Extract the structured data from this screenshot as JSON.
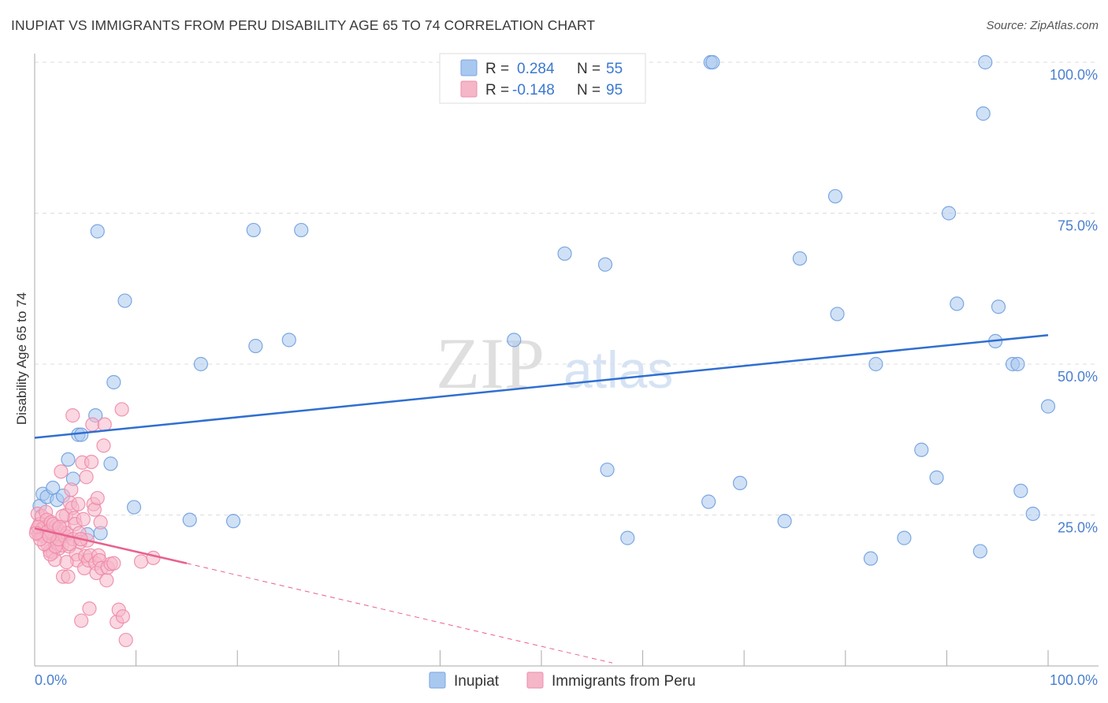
{
  "header": {
    "title": "INUPIAT VS IMMIGRANTS FROM PERU DISABILITY AGE 65 TO 74 CORRELATION CHART",
    "source": "Source: ZipAtlas.com"
  },
  "watermark": {
    "zip": "ZIP",
    "atlas": "atlas"
  },
  "legend": {
    "rows": [
      {
        "r_label": "R =",
        "r_value": "0.284",
        "n_label": "N =",
        "n_value": "55",
        "color": "#a9c8ef"
      },
      {
        "r_label": "R =",
        "r_value": "-0.148",
        "n_label": "N =",
        "n_value": "95",
        "color": "#f5b6c8"
      }
    ]
  },
  "chart_data": {
    "type": "scatter",
    "title": "INUPIAT VS IMMIGRANTS FROM PERU DISABILITY AGE 65 TO 74 CORRELATION CHART",
    "xlabel": "",
    "ylabel": "Disability Age 65 to 74",
    "xlim": [
      0,
      100
    ],
    "ylim": [
      0,
      102
    ],
    "x_tick_labels": [
      "0.0%",
      "100.0%"
    ],
    "y_tick_labels": [
      "25.0%",
      "50.0%",
      "75.0%",
      "100.0%"
    ],
    "y_tick_values": [
      25,
      50,
      75,
      100
    ],
    "grid": true,
    "legend_position": "top-center",
    "series": [
      {
        "name": "Inupiat",
        "color": "#6f9fe0",
        "fill": "#a9c8ef",
        "trend": {
          "x": [
            0,
            100
          ],
          "y": [
            37.8,
            54.8
          ],
          "color": "#2f6fd0"
        },
        "points": [
          [
            0.5,
            26.5
          ],
          [
            0.8,
            28.5
          ],
          [
            1.2,
            28.0
          ],
          [
            1.8,
            29.5
          ],
          [
            2.2,
            27.5
          ],
          [
            2.8,
            28.2
          ],
          [
            3.3,
            34.2
          ],
          [
            3.8,
            31.0
          ],
          [
            4.3,
            38.3
          ],
          [
            4.6,
            38.3
          ],
          [
            5.2,
            21.8
          ],
          [
            6.0,
            41.5
          ],
          [
            6.2,
            72.0
          ],
          [
            6.5,
            22.0
          ],
          [
            7.5,
            33.5
          ],
          [
            7.8,
            47.0
          ],
          [
            8.9,
            60.5
          ],
          [
            9.8,
            26.3
          ],
          [
            15.3,
            24.2
          ],
          [
            16.4,
            50.0
          ],
          [
            19.6,
            24.0
          ],
          [
            21.6,
            72.2
          ],
          [
            21.8,
            53.0
          ],
          [
            25.1,
            54.0
          ],
          [
            26.3,
            72.2
          ],
          [
            47.3,
            54.0
          ],
          [
            52.3,
            68.3
          ],
          [
            56.3,
            66.5
          ],
          [
            56.5,
            32.5
          ],
          [
            58.5,
            21.2
          ],
          [
            66.7,
            100.0
          ],
          [
            66.9,
            100.0
          ],
          [
            66.5,
            27.2
          ],
          [
            69.6,
            30.3
          ],
          [
            74.0,
            24.0
          ],
          [
            75.5,
            67.5
          ],
          [
            79.2,
            58.3
          ],
          [
            79.0,
            77.8
          ],
          [
            82.5,
            17.8
          ],
          [
            83.0,
            50.0
          ],
          [
            85.8,
            21.2
          ],
          [
            87.5,
            35.8
          ],
          [
            89.0,
            31.2
          ],
          [
            90.2,
            75.0
          ],
          [
            91.0,
            60.0
          ],
          [
            93.3,
            19.0
          ],
          [
            93.6,
            91.5
          ],
          [
            93.8,
            100.0
          ],
          [
            94.8,
            53.8
          ],
          [
            95.1,
            59.5
          ],
          [
            96.5,
            50.0
          ],
          [
            97.0,
            50.0
          ],
          [
            97.3,
            29.0
          ],
          [
            98.5,
            25.2
          ],
          [
            100.0,
            43.0
          ]
        ]
      },
      {
        "name": "Immigrants from Peru",
        "color": "#ee8aa8",
        "fill": "#f5b6c8",
        "trend": {
          "x": [
            0,
            15
          ],
          "y": [
            22.8,
            17.0
          ],
          "color": "#e8628d"
        },
        "trend_extension": {
          "x": [
            15,
            57
          ],
          "y": [
            17.0,
            0.5
          ]
        },
        "points": [
          [
            0.2,
            22.5
          ],
          [
            0.3,
            25.2
          ],
          [
            0.4,
            21.8
          ],
          [
            0.5,
            23.5
          ],
          [
            0.6,
            22.0
          ],
          [
            0.7,
            24.8
          ],
          [
            0.8,
            22.8
          ],
          [
            0.9,
            21.5
          ],
          [
            1.0,
            23.0
          ],
          [
            1.1,
            25.5
          ],
          [
            1.2,
            24.2
          ],
          [
            1.3,
            20.0
          ],
          [
            1.4,
            22.5
          ],
          [
            1.5,
            19.0
          ],
          [
            1.6,
            23.8
          ],
          [
            1.7,
            22.0
          ],
          [
            1.8,
            18.8
          ],
          [
            1.9,
            21.0
          ],
          [
            2.0,
            17.6
          ],
          [
            2.1,
            23.2
          ],
          [
            2.2,
            20.5
          ],
          [
            2.3,
            22.6
          ],
          [
            2.4,
            19.5
          ],
          [
            2.5,
            21.8
          ],
          [
            2.6,
            22.2
          ],
          [
            2.7,
            20.0
          ],
          [
            2.8,
            14.8
          ],
          [
            2.9,
            23.0
          ],
          [
            3.0,
            21.5
          ],
          [
            3.1,
            25.0
          ],
          [
            3.2,
            22.0
          ],
          [
            3.3,
            14.8
          ],
          [
            3.4,
            19.8
          ],
          [
            3.5,
            27.0
          ],
          [
            3.6,
            29.2
          ],
          [
            3.7,
            26.2
          ],
          [
            3.8,
            21.0
          ],
          [
            3.9,
            24.5
          ],
          [
            4.0,
            23.5
          ],
          [
            4.1,
            18.5
          ],
          [
            4.2,
            17.5
          ],
          [
            4.3,
            26.8
          ],
          [
            4.4,
            22.0
          ],
          [
            4.5,
            20.5
          ],
          [
            4.6,
            7.5
          ],
          [
            4.7,
            33.7
          ],
          [
            4.8,
            24.3
          ],
          [
            4.9,
            16.2
          ],
          [
            5.0,
            18.2
          ],
          [
            5.1,
            31.3
          ],
          [
            5.2,
            20.8
          ],
          [
            5.3,
            17.5
          ],
          [
            5.4,
            9.5
          ],
          [
            5.5,
            18.3
          ],
          [
            5.6,
            33.8
          ],
          [
            5.7,
            40.0
          ],
          [
            5.8,
            26.8
          ],
          [
            5.9,
            25.9
          ],
          [
            6.0,
            17.0
          ],
          [
            6.1,
            15.4
          ],
          [
            6.2,
            27.8
          ],
          [
            6.3,
            18.3
          ],
          [
            6.4,
            17.5
          ],
          [
            6.5,
            23.8
          ],
          [
            6.6,
            16.2
          ],
          [
            6.8,
            36.5
          ],
          [
            6.9,
            40.0
          ],
          [
            7.1,
            14.2
          ],
          [
            7.2,
            16.3
          ],
          [
            7.5,
            16.9
          ],
          [
            7.8,
            17.0
          ],
          [
            8.1,
            7.3
          ],
          [
            8.3,
            9.3
          ],
          [
            8.6,
            42.5
          ],
          [
            8.7,
            8.2
          ],
          [
            9.0,
            4.3
          ],
          [
            10.5,
            17.3
          ],
          [
            11.7,
            17.9
          ],
          [
            3.75,
            41.5
          ],
          [
            2.6,
            32.2
          ],
          [
            1.55,
            18.5
          ],
          [
            2.05,
            19.8
          ],
          [
            0.35,
            23.0
          ],
          [
            1.25,
            22.2
          ],
          [
            2.35,
            21.0
          ],
          [
            0.95,
            20.2
          ],
          [
            1.85,
            23.5
          ],
          [
            3.15,
            17.2
          ],
          [
            0.55,
            21.0
          ],
          [
            2.75,
            24.8
          ],
          [
            1.45,
            21.5
          ],
          [
            2.45,
            23.0
          ],
          [
            3.45,
            20.2
          ],
          [
            0.15,
            22.0
          ],
          [
            4.55,
            21.0
          ]
        ]
      }
    ]
  },
  "bottom_legend": {
    "items": [
      {
        "label": "Inupiat",
        "color": "#a9c8ef"
      },
      {
        "label": "Immigrants from Peru",
        "color": "#f5b6c8"
      }
    ]
  }
}
